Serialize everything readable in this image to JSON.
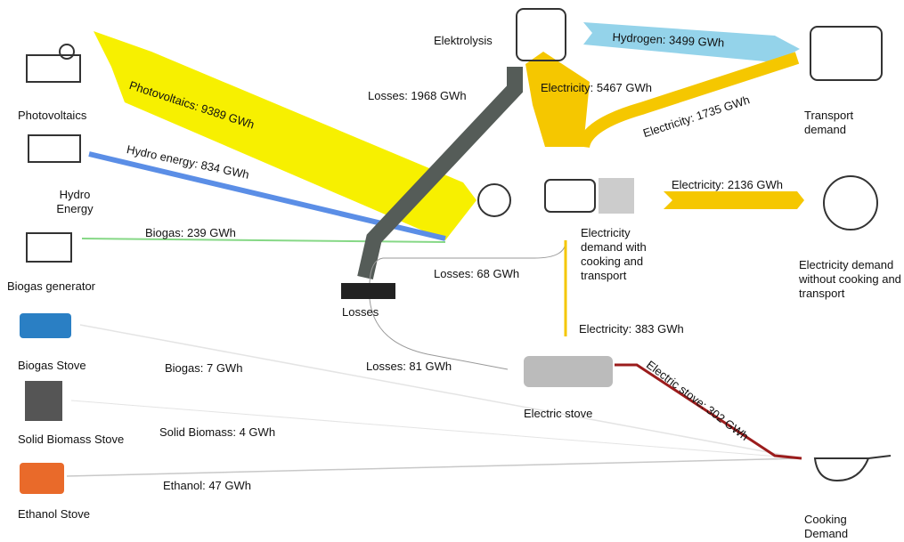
{
  "nodes": {
    "photovoltaics": "Photovoltaics",
    "hydro": "Hydro Energy",
    "biogas_generator": "Biogas generator",
    "biogas_stove": "Biogas Stove",
    "solid_biomass_stove": "Solid Biomass Stove",
    "ethanol_stove": "Ethanol Stove",
    "elektrolysis": "Elektrolysis",
    "losses": "Losses",
    "electricity_demand_with": "Electricity demand with cooking and transport",
    "electric_stove": "Electric stove",
    "transport_demand": "Transport demand",
    "electricity_demand_without": "Electricity demand without cooking and transport",
    "cooking_demand": "Cooking Demand"
  },
  "links": {
    "photovoltaics": "Photovoltaics: 9389 GWh",
    "hydro": "Hydro energy: 834 GWh",
    "biogas": "Biogas: 239 GWh",
    "losses_elektrolysis": "Losses: 1968 GWh",
    "hydrogen": "Hydrogen: 3499 GWh",
    "electricity_elektrolysis": "Electricity: 5467 GWh",
    "electricity_transport": "Electricity: 1735 GWh",
    "electricity_demand": "Electricity: 2136 GWh",
    "losses_demand": "Losses: 68 GWh",
    "electricity_stove": "Electricity: 383 GWh",
    "losses_stove": "Losses: 81 GWh",
    "electric_stove_cooking": "Electric stove: 302 GWh",
    "biogas_stove_cooking": "Biogas: 7 GWh",
    "solid_biomass_cooking": "Solid Biomass: 4 GWh",
    "ethanol_cooking": "Ethanol: 47 GWh"
  }
}
